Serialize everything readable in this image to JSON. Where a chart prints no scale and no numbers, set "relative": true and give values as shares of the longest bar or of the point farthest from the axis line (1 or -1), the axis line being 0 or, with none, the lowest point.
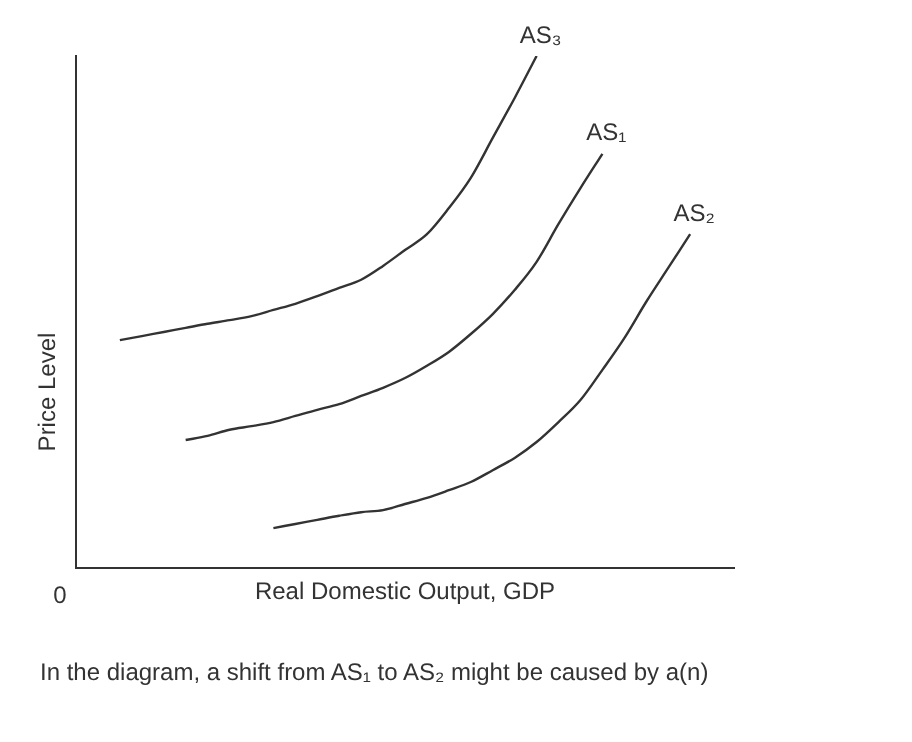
{
  "chart_data": {
    "type": "line",
    "relative": true,
    "xlabel": "Real Domestic Output, GDP",
    "ylabel": "Price Level",
    "legend": false,
    "grid": false,
    "marker": "none",
    "line_style": "solid",
    "annotations": [
      "0",
      "In the diagram, a shift from AS₁ to AS₂ might be caused by a(n)"
    ],
    "categories": [
      null,
      null,
      null,
      null,
      null,
      null,
      null,
      null,
      null,
      null,
      null,
      null,
      null,
      null,
      null,
      null,
      null,
      null,
      null,
      null,
      null,
      null,
      null,
      null,
      null,
      null,
      null,
      null,
      null,
      null,
      null
    ],
    "series": [
      {
        "name": "AS₃",
        "color": "#333333",
        "values": [
          null,
          null,
          0.445,
          0.453,
          0.461,
          0.469,
          0.477,
          0.484,
          0.492,
          0.504,
          0.516,
          0.531,
          0.547,
          0.563,
          0.59,
          0.621,
          0.652,
          0.703,
          0.762,
          0.84,
          0.918,
          1,
          null,
          null,
          null,
          null,
          null,
          null,
          null,
          null,
          null
        ]
      },
      {
        "name": "AS₁",
        "color": "#333333",
        "values": [
          null,
          null,
          null,
          null,
          null,
          0.25,
          0.258,
          0.27,
          0.277,
          0.285,
          0.297,
          0.309,
          0.32,
          0.336,
          0.352,
          0.371,
          0.395,
          0.422,
          0.457,
          0.496,
          0.543,
          0.598,
          0.672,
          0.742,
          0.809,
          null,
          null,
          null,
          null,
          null,
          null
        ]
      },
      {
        "name": "AS₂",
        "color": "#333333",
        "values": [
          null,
          null,
          null,
          null,
          null,
          null,
          null,
          null,
          null,
          0.078,
          0.086,
          0.094,
          0.102,
          0.109,
          0.113,
          0.125,
          0.137,
          0.152,
          0.168,
          0.191,
          0.215,
          0.246,
          0.285,
          0.328,
          0.387,
          0.449,
          0.52,
          0.586,
          0.652,
          null,
          null
        ]
      }
    ]
  }
}
